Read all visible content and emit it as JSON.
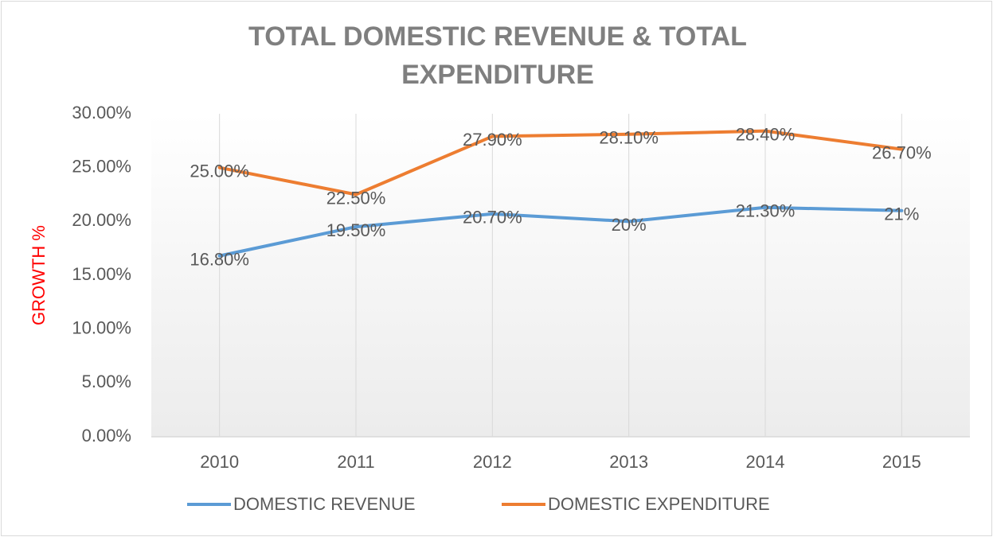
{
  "chart_data": {
    "type": "line",
    "title": "TOTAL DOMESTIC REVENUE & TOTAL EXPENDITURE",
    "ylabel": "GROWTH %",
    "categories": [
      "2010",
      "2011",
      "2012",
      "2013",
      "2014",
      "2015"
    ],
    "series": [
      {
        "name": "DOMESTIC REVENUE",
        "color": "#5b9bd5",
        "values": [
          16.8,
          19.5,
          20.7,
          20,
          21.3,
          21
        ],
        "value_labels": [
          "16.80%",
          "19.50%",
          "20.70%",
          "20%",
          "21.30%",
          "21%"
        ]
      },
      {
        "name": "DOMESTIC EXPENDITURE",
        "color": "#ed7d31",
        "values": [
          25,
          22.5,
          27.9,
          28.1,
          28.4,
          26.7
        ],
        "value_labels": [
          "25.00%",
          "22.50%",
          "27.90%",
          "28.10%",
          "28.40%",
          "26.70%"
        ]
      }
    ],
    "ylim": [
      0,
      30
    ],
    "yticks": [
      {
        "value": 0,
        "label": "0.00%"
      },
      {
        "value": 5,
        "label": "5.00%"
      },
      {
        "value": 10,
        "label": "10.00%"
      },
      {
        "value": 15,
        "label": "15.00%"
      },
      {
        "value": 20,
        "label": "20.00%"
      },
      {
        "value": 25,
        "label": "25.00%"
      },
      {
        "value": 30,
        "label": "30.00%"
      }
    ],
    "grid": true,
    "legend": "bottom"
  }
}
